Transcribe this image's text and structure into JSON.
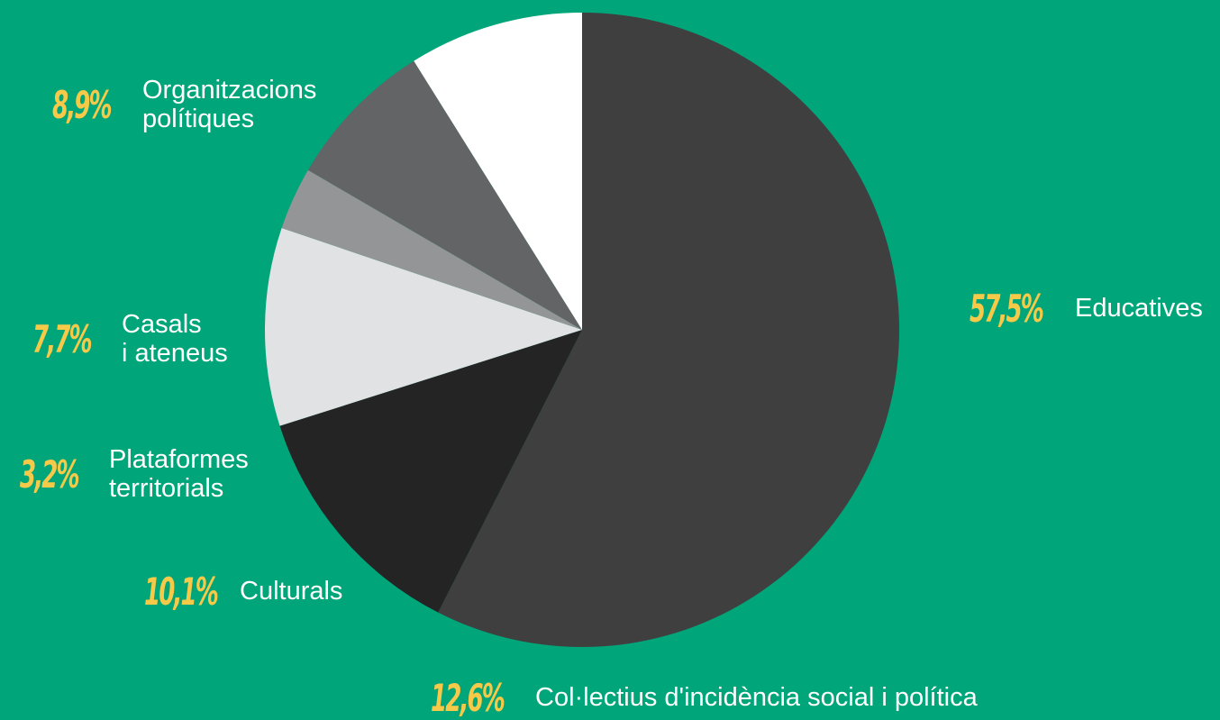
{
  "chart_data": {
    "type": "pie",
    "start_angle_deg": 0,
    "direction": "clockwise",
    "slices": [
      {
        "label": "Educatives",
        "value": 57.5,
        "value_label": "57,5%",
        "color": "#3f3f3f"
      },
      {
        "label": "Col·lectius d'incidència social i política",
        "value": 12.6,
        "value_label": "12,6%",
        "color": "#242424"
      },
      {
        "label": "Culturals",
        "value": 10.1,
        "value_label": "10,1%",
        "color": "#e1e2e3"
      },
      {
        "label": "Plataformes territorials",
        "value": 3.2,
        "value_label": "3,2%",
        "color": "#939597"
      },
      {
        "label": "Casals i ateneus",
        "value": 7.7,
        "value_label": "7,7%",
        "color": "#636465"
      },
      {
        "label": "Organitzacions polítiques",
        "value": 8.9,
        "value_label": "8,9%",
        "color": "#ffffff"
      }
    ]
  },
  "labels": [
    {
      "pct": "8,9%",
      "name": "Organitzacions\npolítiques"
    },
    {
      "pct": "7,7%",
      "name": "Casals\ni ateneus"
    },
    {
      "pct": "3,2%",
      "name": "Plataformes\nterritorials"
    },
    {
      "pct": "10,1%",
      "name": "Culturals"
    },
    {
      "pct": "12,6%",
      "name": "Col·lectius d'incidència social i política"
    },
    {
      "pct": "57,5%",
      "name": "Educatives"
    }
  ]
}
